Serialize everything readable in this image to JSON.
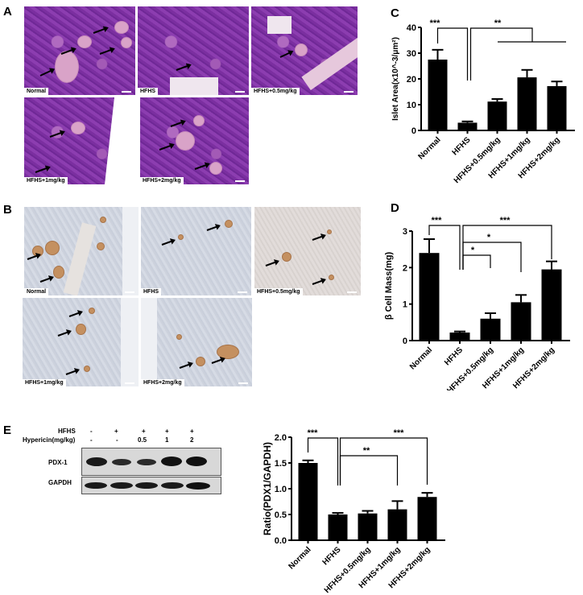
{
  "panels": {
    "A": {
      "letter": "A",
      "tiles": [
        "Normal",
        "HFHS",
        "HFHS+0.5mg/kg",
        "HFHS+1mg/kg",
        "HFHS+2mg/kg"
      ]
    },
    "B": {
      "letter": "B",
      "tiles": [
        "Normal",
        "HFHS",
        "HFHS+0.5mg/kg",
        "HFHS+1mg/kg",
        "HFHS+2mg/kg"
      ]
    },
    "C": {
      "letter": "C"
    },
    "D": {
      "letter": "D"
    },
    "E": {
      "letter": "E",
      "blot": {
        "row_labels": [
          "HFHS",
          "Hypericin(mg/kg)"
        ],
        "hfhs": [
          "-",
          "+",
          "+",
          "+",
          "+"
        ],
        "hypericin": [
          "-",
          "-",
          "0.5",
          "1",
          "2"
        ],
        "bands": [
          "PDX-1",
          "GAPDH"
        ]
      }
    }
  },
  "chart_data": [
    {
      "id": "C",
      "type": "bar",
      "categories": [
        "Normal",
        "HFHS",
        "HFHS+0.5mg/kg",
        "HFHS+1mg/kg",
        "HFHS+2mg/kg"
      ],
      "values": [
        27.5,
        3.0,
        11.2,
        20.6,
        17.2
      ],
      "errors": [
        3.8,
        0.5,
        1.0,
        2.9,
        1.8
      ],
      "ylabel": "Islet Area(x10^-3/μm²)",
      "ylim": [
        0,
        40
      ],
      "yticks": [
        "0",
        "10",
        "20",
        "30",
        "40"
      ],
      "significance": [
        {
          "from": 0,
          "to": 1,
          "label": "***"
        },
        {
          "from": 1,
          "to": [
            2,
            3,
            4
          ],
          "label": "**"
        }
      ]
    },
    {
      "id": "D",
      "type": "bar",
      "categories": [
        "Normal",
        "HFHS",
        "HFHS+0.5mg/kg",
        "HFHS+1mg/kg",
        "HFHS+2mg/kg"
      ],
      "values": [
        2.4,
        0.22,
        0.6,
        1.05,
        1.95
      ],
      "errors": [
        0.38,
        0.03,
        0.15,
        0.2,
        0.22
      ],
      "ylabel": "β Cell Mass(mg)",
      "ylim": [
        0,
        3
      ],
      "yticks": [
        "0",
        "1",
        "2",
        "3"
      ],
      "significance": [
        {
          "from": 0,
          "to": 1,
          "label": "***"
        },
        {
          "from": 1,
          "to": 2,
          "label": "*"
        },
        {
          "from": 1,
          "to": 3,
          "label": "*"
        },
        {
          "from": 1,
          "to": 4,
          "label": "***"
        }
      ]
    },
    {
      "id": "E",
      "type": "bar",
      "categories": [
        "Normal",
        "HFHS",
        "HFHS+0.5mg/kg",
        "HFHS+1mg/kg",
        "HFHS+2mg/kg"
      ],
      "values": [
        1.5,
        0.5,
        0.52,
        0.6,
        0.84
      ],
      "errors": [
        0.05,
        0.03,
        0.05,
        0.16,
        0.08
      ],
      "ylabel": "Ratio(PDX1/GAPDH)",
      "ylim": [
        0,
        2.0
      ],
      "yticks": [
        "0.0",
        "0.5",
        "1.0",
        "1.5",
        "2.0"
      ],
      "significance": [
        {
          "from": 0,
          "to": 1,
          "label": "***"
        },
        {
          "from": 1,
          "to": 3,
          "label": "**"
        },
        {
          "from": 1,
          "to": 4,
          "label": "***"
        }
      ]
    }
  ]
}
